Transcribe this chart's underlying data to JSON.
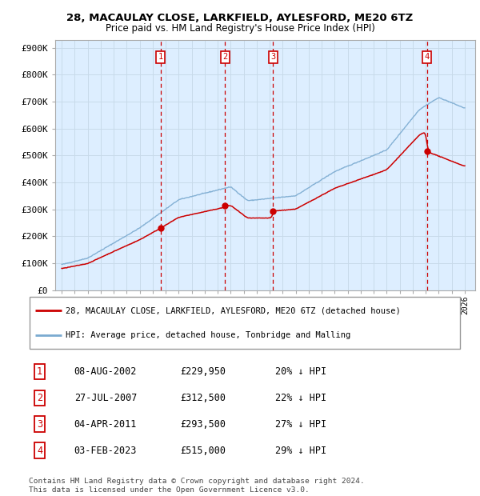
{
  "title1": "28, MACAULAY CLOSE, LARKFIELD, AYLESFORD, ME20 6TZ",
  "title2": "Price paid vs. HM Land Registry's House Price Index (HPI)",
  "ylabel_ticks": [
    "£0",
    "£100K",
    "£200K",
    "£300K",
    "£400K",
    "£500K",
    "£600K",
    "£700K",
    "£800K",
    "£900K"
  ],
  "ytick_vals": [
    0,
    100000,
    200000,
    300000,
    400000,
    500000,
    600000,
    700000,
    800000,
    900000
  ],
  "ylim": [
    0,
    930000
  ],
  "xlim_start": 1994.5,
  "xlim_end": 2026.8,
  "hpi_color": "#7aaad0",
  "price_color": "#cc0000",
  "vline_color": "#cc0000",
  "sale_dates": [
    2002.6,
    2007.57,
    2011.25,
    2023.08
  ],
  "sale_prices": [
    229950,
    312500,
    293500,
    515000
  ],
  "sale_labels": [
    "1",
    "2",
    "3",
    "4"
  ],
  "legend_label_red": "28, MACAULAY CLOSE, LARKFIELD, AYLESFORD, ME20 6TZ (detached house)",
  "legend_label_blue": "HPI: Average price, detached house, Tonbridge and Malling",
  "table_data": [
    [
      "1",
      "08-AUG-2002",
      "£229,950",
      "20% ↓ HPI"
    ],
    [
      "2",
      "27-JUL-2007",
      "£312,500",
      "22% ↓ HPI"
    ],
    [
      "3",
      "04-APR-2011",
      "£293,500",
      "27% ↓ HPI"
    ],
    [
      "4",
      "03-FEB-2023",
      "£515,000",
      "29% ↓ HPI"
    ]
  ],
  "footer": "Contains HM Land Registry data © Crown copyright and database right 2024.\nThis data is licensed under the Open Government Licence v3.0.",
  "background_color": "#ffffff",
  "grid_color": "#c8daea",
  "plot_bg": "#ddeeff"
}
